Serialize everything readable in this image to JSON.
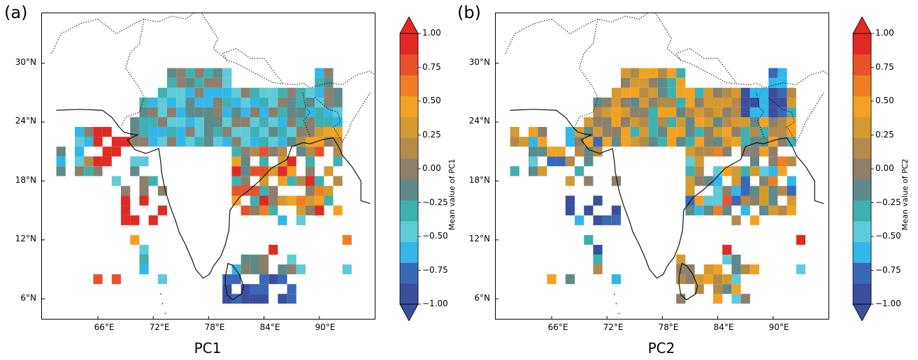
{
  "panels": [
    {
      "letter": "(a)",
      "title": "PC1",
      "colorbar_label": "Mean value of PC1"
    },
    {
      "letter": "(b)",
      "title": "PC2",
      "colorbar_label": "Mean value of PC2"
    }
  ],
  "lat_ticks": [
    "30°N",
    "24°N",
    "18°N",
    "12°N",
    "6°N"
  ],
  "lon_ticks": [
    "66°E",
    "72°E",
    "78°E",
    "84°E",
    "90°E"
  ],
  "colorbar_ticks": [
    "1.00",
    "0.75",
    "0.50",
    "0.25",
    "0.00",
    "−0.25",
    "−0.50",
    "−0.75",
    "−1.00"
  ],
  "colorscale": [
    "#3a4f9e",
    "#3a68b8",
    "#33b7e9",
    "#5fcad8",
    "#3fb0b0",
    "#5e8a8a",
    "#8c7f6c",
    "#b48a4a",
    "#d49a30",
    "#f2a223",
    "#ef7f22",
    "#e8522a",
    "#e22a25"
  ],
  "chart_data": {
    "type": "heatmap",
    "value_range": [
      -1.0,
      1.0
    ]
  }
}
